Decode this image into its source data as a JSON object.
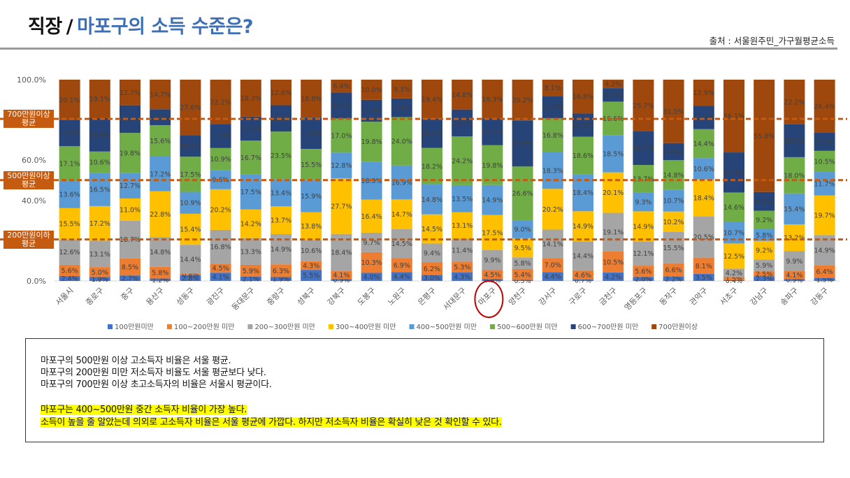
{
  "header": {
    "title_main": "직장",
    "title_sep": "/",
    "title_sub": "마포구의 소득 수준은?",
    "source": "출처 : 서울원주민_가구월평균소득"
  },
  "colors": {
    "s1": "#4472c4",
    "s2": "#ed7d31",
    "s3": "#a5a5a5",
    "s4": "#ffc000",
    "s5": "#5b9bd5",
    "s6": "#70ad47",
    "s7": "#264478",
    "s8": "#9e480e",
    "ref_line": "#c55a11",
    "highlight": "#ffff00",
    "circle": "#c00000"
  },
  "chart_data": {
    "type": "bar",
    "stacked": true,
    "title": "",
    "xlabel": "",
    "ylabel": "",
    "ylim": [
      0,
      100
    ],
    "yticks": [
      "0.0%",
      "20.0%",
      "40.0%",
      "60.0%",
      "80.0%",
      "100.0%"
    ],
    "categories": [
      "서울시",
      "종로구",
      "중구",
      "용산구",
      "성동구",
      "광진구",
      "동대문구",
      "중랑구",
      "성북구",
      "강북구",
      "도봉구",
      "노원구",
      "은평구",
      "서대문구",
      "마포구",
      "양천구",
      "강서구",
      "구로구",
      "금천구",
      "영등포구",
      "동작구",
      "관악구",
      "서초구",
      "강남구",
      "송파구",
      "강동구"
    ],
    "highlight_category": "마포구",
    "legend_position": "bottom",
    "series": [
      {
        "name": "100만원미만",
        "values": [
          2.4,
          1.9,
          2.7,
          1.2,
          2.8,
          4.1,
          2.1,
          1.9,
          5.5,
          0.9,
          4.0,
          4.4,
          3.0,
          4.3,
          0.9,
          0.5,
          4.4,
          0.7,
          4.2,
          2.0,
          2.2,
          3.5,
          0.4,
          2.3,
          0.9,
          1.5
        ]
      },
      {
        "name": "100~200만원 미만",
        "values": [
          5.6,
          5.0,
          8.5,
          5.8,
          0.8,
          4.5,
          5.9,
          6.3,
          4.3,
          4.1,
          10.3,
          6.9,
          6.2,
          5.3,
          4.5,
          5.4,
          7.0,
          4.6,
          10.5,
          5.6,
          6.6,
          8.1,
          1.5,
          2.5,
          4.1,
          6.4
        ]
      },
      {
        "name": "200~300만원 미만",
        "values": [
          12.6,
          13.1,
          18.7,
          14.8,
          14.4,
          16.8,
          13.3,
          14.9,
          10.6,
          18.4,
          9.7,
          14.5,
          9.4,
          11.4,
          9.9,
          5.8,
          14.1,
          14.4,
          19.1,
          12.1,
          15.5,
          20.5,
          4.2,
          5.9,
          9.9,
          14.9
        ]
      },
      {
        "name": "300~400만원 미만",
        "values": [
          15.5,
          17.2,
          11.0,
          22.8,
          15.4,
          20.2,
          14.2,
          13.7,
          13.8,
          27.7,
          16.4,
          14.7,
          14.5,
          13.1,
          17.5,
          9.5,
          20.2,
          14.9,
          20.1,
          14.9,
          10.2,
          18.4,
          12.5,
          9.2,
          13.2,
          19.7
        ]
      },
      {
        "name": "400~500만원 미만",
        "values": [
          13.6,
          16.5,
          12.7,
          17.2,
          10.9,
          9.6,
          17.5,
          13.4,
          15.9,
          12.8,
          18.9,
          16.9,
          14.8,
          13.5,
          14.9,
          9.0,
          18.3,
          18.4,
          18.5,
          9.3,
          10.7,
          10.6,
          10.7,
          5.8,
          15.4,
          11.7
        ]
      },
      {
        "name": "500~600만원 미만",
        "values": [
          17.1,
          10.6,
          19.8,
          15.6,
          17.5,
          10.9,
          16.7,
          23.5,
          15.5,
          17.0,
          19.8,
          24.0,
          18.2,
          24.2,
          19.8,
          26.6,
          16.8,
          18.6,
          16.6,
          13.7,
          14.8,
          14.4,
          14.6,
          9.2,
          18.0,
          10.5
        ]
      },
      {
        "name": "600~700만원 미만",
        "values": [
          12.9,
          16.6,
          13.7,
          7.9,
          10.7,
          11.9,
          12.0,
          13.0,
          15.6,
          12.9,
          10.9,
          9.3,
          14.5,
          13.4,
          13.3,
          22.9,
          11.0,
          11.5,
          6.7,
          16.7,
          8.5,
          11.7,
          19.9,
          9.3,
          16.3,
          9.0
        ]
      },
      {
        "name": "700만원이상",
        "values": [
          20.1,
          19.1,
          12.7,
          14.7,
          27.6,
          22.1,
          18.3,
          12.6,
          18.8,
          6.4,
          10.0,
          9.3,
          19.4,
          14.8,
          19.3,
          20.2,
          8.1,
          16.8,
          4.2,
          25.7,
          31.5,
          12.9,
          36.1,
          55.8,
          22.2,
          26.4
        ]
      }
    ],
    "reference_lines": [
      {
        "label": "700만원이상 평균",
        "value": 80.5
      },
      {
        "label": "500만원이상 평균",
        "value": 50.1
      },
      {
        "label": "200만원이하 평균",
        "value": 20.6
      }
    ]
  },
  "note": {
    "lines": [
      "마포구의 500만원 이상 고소득자 비율은 서울 평균.",
      "마포구의 200만원 미만 저소득자 비율도 서울 평균보다 낮다.",
      "마포구의 700만원 이상 초고소득자의 비율은 서울시 평균이다."
    ],
    "highlight_lines": [
      "마포구는 400~500만원  중간 소득자 비율이 가장 높다.",
      "소득이 높을 줄 알았는데 의외로 고소득자 비율은 서울 평균에 가깝다. 하지만 저소득자 비율은 확실히 낮은 것 확인할 수 있다."
    ]
  }
}
